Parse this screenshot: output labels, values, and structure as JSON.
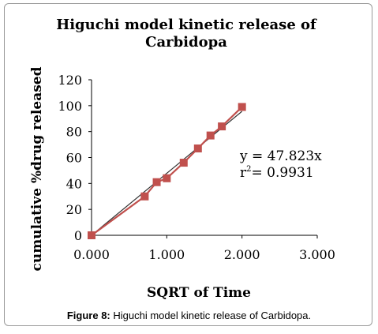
{
  "chart_data": {
    "type": "scatter",
    "title_lines": [
      "Higuchi model kinetic release of",
      "Carbidopa"
    ],
    "xlabel": "SQRT of Time",
    "ylabel": "cumulative %drug released",
    "xlim": [
      0,
      3
    ],
    "ylim": [
      0,
      120
    ],
    "x_ticks": [
      "0.000",
      "1.000",
      "2.000",
      "3.000"
    ],
    "y_ticks": [
      "0",
      "20",
      "40",
      "60",
      "80",
      "100",
      "120"
    ],
    "x": [
      0,
      0.707,
      0.866,
      1.0,
      1.225,
      1.414,
      1.581,
      1.732,
      2.0
    ],
    "values": [
      0,
      30,
      41,
      44,
      56,
      67,
      77,
      84,
      99
    ],
    "trendline": {
      "slope": 47.823,
      "x_range": [
        0,
        2.0
      ]
    },
    "annotation": {
      "equation": "y = 47.823x",
      "r_label": "r",
      "r_exp": "2",
      "r_value": "= 0.9931"
    },
    "colors": {
      "marker": "#c0504d",
      "trendline": "#333333"
    }
  },
  "caption": {
    "label": "Figure 8:",
    "text": " Higuchi model kinetic release of Carbidopa."
  }
}
